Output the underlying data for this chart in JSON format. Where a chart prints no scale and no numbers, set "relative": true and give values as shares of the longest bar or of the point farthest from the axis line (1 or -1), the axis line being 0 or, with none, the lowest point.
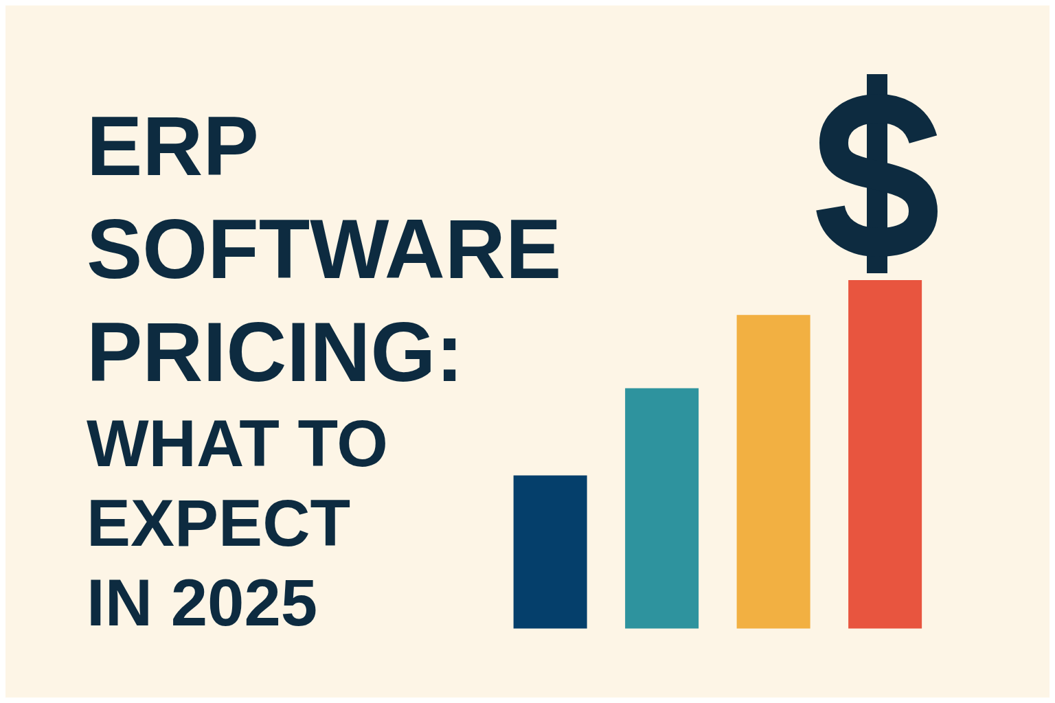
{
  "chart_data": {
    "type": "bar",
    "title": "ERP SOFTWARE PRICING:",
    "subtitle": "WHAT TO EXPECT IN 2025",
    "categories": [
      null,
      null,
      null,
      null
    ],
    "values": [
      0.44,
      0.69,
      0.9,
      1
    ],
    "colors": [
      "#053f6b",
      "#2e939e",
      "#f2b042",
      "#e8553f"
    ],
    "relative": true
  }
}
